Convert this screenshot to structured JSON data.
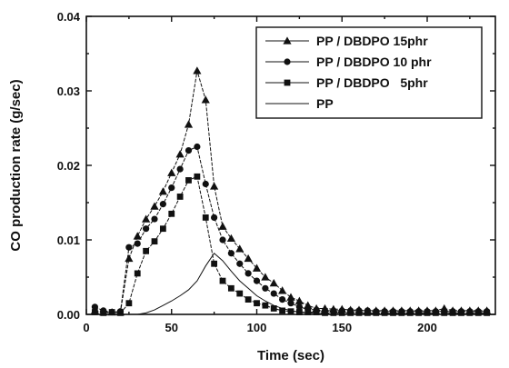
{
  "chart_data": {
    "type": "line",
    "xlabel": "Time (sec)",
    "ylabel": "CO production rate (g/sec)",
    "xlim": [
      0,
      240
    ],
    "ylim": [
      0,
      0.04
    ],
    "xticks": [
      0,
      50,
      100,
      150,
      200
    ],
    "xtick_labels": [
      "0",
      "50",
      "100",
      "150",
      "200"
    ],
    "yticks": [
      0,
      0.01,
      0.02,
      0.03,
      0.04
    ],
    "ytick_labels": [
      "0.00",
      "0.01",
      "0.02",
      "0.03",
      "0.04"
    ],
    "grid": false,
    "legend_position": "top-right",
    "series": [
      {
        "name": "PP / DBDPO 15phr",
        "marker": "triangle",
        "x": [
          5,
          10,
          15,
          20,
          25,
          30,
          35,
          40,
          45,
          50,
          55,
          60,
          65,
          70,
          75,
          80,
          85,
          90,
          95,
          100,
          105,
          110,
          115,
          120,
          125,
          130,
          135,
          140,
          145,
          150,
          155,
          160,
          165,
          170,
          175,
          180,
          185,
          190,
          195,
          200,
          205,
          210,
          215,
          220,
          225,
          230,
          235
        ],
        "y": [
          0.0005,
          0.0003,
          0.0003,
          0.0003,
          0.0075,
          0.0105,
          0.0128,
          0.0145,
          0.0165,
          0.019,
          0.0215,
          0.0255,
          0.0327,
          0.0288,
          0.0172,
          0.0118,
          0.0102,
          0.0088,
          0.0075,
          0.0062,
          0.005,
          0.0042,
          0.0032,
          0.0023,
          0.0018,
          0.0012,
          0.0008,
          0.0008,
          0.0007,
          0.0007,
          0.0006,
          0.0006,
          0.0005,
          0.0005,
          0.0005,
          0.0005,
          0.0005,
          0.0005,
          0.0005,
          0.0005,
          0.0005,
          0.0008,
          0.0005,
          0.0005,
          0.0005,
          0.0005,
          0.0005
        ]
      },
      {
        "name": "PP / DBDPO 10 phr",
        "marker": "circle",
        "x": [
          5,
          10,
          15,
          20,
          25,
          30,
          35,
          40,
          45,
          50,
          55,
          60,
          65,
          70,
          75,
          80,
          85,
          90,
          95,
          100,
          105,
          110,
          115,
          120,
          125,
          130,
          135,
          140,
          145,
          150,
          155,
          160,
          165,
          170,
          175,
          180,
          185,
          190,
          195,
          200,
          205,
          210,
          215,
          220,
          225,
          230,
          235
        ],
        "y": [
          0.001,
          0.0005,
          0.0003,
          0.0004,
          0.009,
          0.0095,
          0.0115,
          0.0128,
          0.0148,
          0.017,
          0.0195,
          0.022,
          0.0225,
          0.0175,
          0.013,
          0.01,
          0.0082,
          0.0068,
          0.0055,
          0.0045,
          0.0035,
          0.0028,
          0.002,
          0.0015,
          0.001,
          0.0007,
          0.0006,
          0.0005,
          0.0005,
          0.0005,
          0.0005,
          0.0005,
          0.0005,
          0.0004,
          0.0004,
          0.0004,
          0.0004,
          0.0004,
          0.0004,
          0.0004,
          0.0004,
          0.0004,
          0.0004,
          0.0004,
          0.0004,
          0.0004,
          0.0004
        ]
      },
      {
        "name": "PP / DBDPO   5phr",
        "marker": "square",
        "x": [
          5,
          10,
          15,
          20,
          25,
          30,
          35,
          40,
          45,
          50,
          55,
          60,
          65,
          70,
          75,
          80,
          85,
          90,
          95,
          100,
          105,
          110,
          115,
          120,
          125,
          130,
          135,
          140,
          145,
          150,
          155,
          160,
          165,
          170,
          175,
          180,
          185,
          190,
          195,
          200,
          205,
          210,
          215,
          220,
          225,
          230,
          235
        ],
        "y": [
          0.0003,
          0.0002,
          0.0003,
          0.0002,
          0.0015,
          0.0055,
          0.0085,
          0.0098,
          0.0115,
          0.0135,
          0.0158,
          0.018,
          0.0185,
          0.013,
          0.0068,
          0.0045,
          0.0035,
          0.0028,
          0.002,
          0.0015,
          0.0012,
          0.0008,
          0.0005,
          0.0004,
          0.0003,
          0.0003,
          0.0003,
          0.0002,
          0.0002,
          0.0002,
          0.0002,
          0.0002,
          0.0002,
          0.0002,
          0.0002,
          0.0002,
          0.0002,
          0.0002,
          0.0002,
          0.0002,
          0.0002,
          0.0002,
          0.0002,
          0.0002,
          0.0002,
          0.0002,
          0.0002
        ]
      },
      {
        "name": "PP",
        "marker": "none",
        "x": [
          30,
          35,
          40,
          45,
          50,
          55,
          60,
          65,
          70,
          75,
          80,
          85,
          90,
          95,
          100,
          105,
          110,
          115,
          120,
          125,
          130,
          135,
          140,
          145,
          150
        ],
        "y": [
          0.0,
          0.0002,
          0.0006,
          0.0012,
          0.0018,
          0.0025,
          0.0033,
          0.0045,
          0.0065,
          0.0082,
          0.0072,
          0.0058,
          0.0045,
          0.0035,
          0.0025,
          0.0018,
          0.0012,
          0.0008,
          0.0005,
          0.0003,
          0.0002,
          0.0001,
          0.0001,
          0.0,
          0.0
        ]
      }
    ]
  }
}
